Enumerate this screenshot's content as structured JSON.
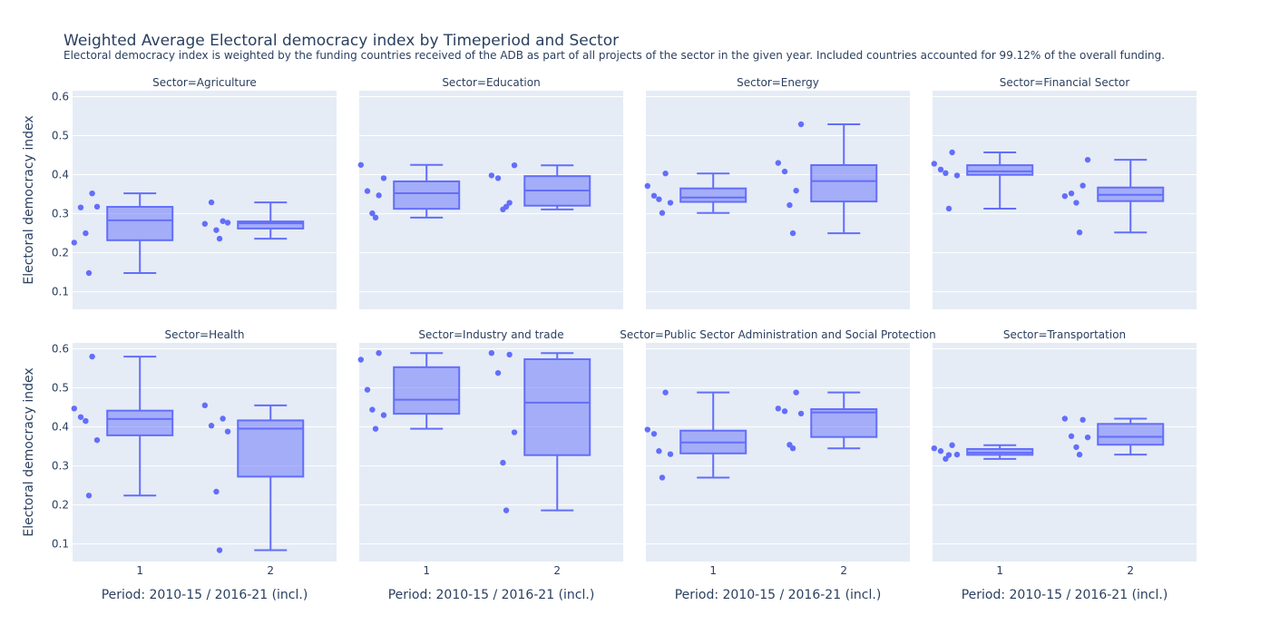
{
  "chart_data": {
    "type": "box",
    "title": "Weighted Average Electoral democracy index by Timeperiod and Sector",
    "subtitle": "Electoral democracy index is weighted by the funding countries received of the ADB as part of all projects of the sector in the given year. Included countries accounted for 99.12% of the overall funding.",
    "xlabel": "Period: 2010-15 / 2016-21 (incl.)",
    "ylabel": "Electoral democracy index",
    "x_categories": [
      "1",
      "2"
    ],
    "ylim": [
      0.055,
      0.615
    ],
    "yticks": [
      "0.1",
      "0.2",
      "0.3",
      "0.4",
      "0.5",
      "0.6"
    ],
    "grid": true,
    "colors": {
      "box_line": "#636efa",
      "box_fill": "rgba(99,110,250,0.5)",
      "plot_bg": "#e5ecf6",
      "grid": "#ffffff"
    },
    "facets": [
      {
        "label": "Sector=Agriculture",
        "boxes": [
          {
            "x": "1",
            "points": [
              0.316,
              0.318,
              0.226,
              0.352,
              0.25,
              0.148
            ]
          },
          {
            "x": "2",
            "points": [
              0.329,
              0.277,
              0.274,
              0.281,
              0.258,
              0.236
            ]
          }
        ]
      },
      {
        "label": "Sector=Education",
        "boxes": [
          {
            "x": "1",
            "points": [
              0.358,
              0.391,
              0.425,
              0.347,
              0.301,
              0.29
            ]
          },
          {
            "x": "2",
            "points": [
              0.391,
              0.424,
              0.398,
              0.328,
              0.311,
              0.318
            ]
          }
        ]
      },
      {
        "label": "Sector=Energy",
        "boxes": [
          {
            "x": "1",
            "points": [
              0.346,
              0.328,
              0.371,
              0.403,
              0.337,
              0.302
            ]
          },
          {
            "x": "2",
            "points": [
              0.408,
              0.529,
              0.43,
              0.359,
              0.322,
              0.25
            ]
          }
        ]
      },
      {
        "label": "Sector=Financial Sector",
        "boxes": [
          {
            "x": "1",
            "points": [
              0.413,
              0.398,
              0.428,
              0.457,
              0.404,
              0.313
            ]
          },
          {
            "x": "2",
            "points": [
              0.352,
              0.438,
              0.345,
              0.372,
              0.328,
              0.252
            ]
          }
        ]
      },
      {
        "label": "Sector=Health",
        "boxes": [
          {
            "x": "1",
            "points": [
              0.425,
              0.366,
              0.447,
              0.58,
              0.415,
              0.224
            ]
          },
          {
            "x": "2",
            "points": [
              0.403,
              0.388,
              0.455,
              0.421,
              0.234,
              0.084
            ]
          }
        ]
      },
      {
        "label": "Sector=Industry and trade",
        "boxes": [
          {
            "x": "1",
            "points": [
              0.495,
              0.43,
              0.572,
              0.589,
              0.444,
              0.395
            ]
          },
          {
            "x": "2",
            "points": [
              0.538,
              0.386,
              0.589,
              0.585,
              0.308,
              0.186
            ]
          }
        ]
      },
      {
        "label": "Sector=Public Sector Administration and Social Protection",
        "boxes": [
          {
            "x": "1",
            "points": [
              0.382,
              0.33,
              0.393,
              0.488,
              0.338,
              0.27
            ]
          },
          {
            "x": "2",
            "points": [
              0.44,
              0.434,
              0.447,
              0.488,
              0.354,
              0.345
            ]
          }
        ]
      },
      {
        "label": "Sector=Transportation",
        "boxes": [
          {
            "x": "1",
            "points": [
              0.338,
              0.329,
              0.345,
              0.353,
              0.318,
              0.328
            ]
          },
          {
            "x": "2",
            "points": [
              0.376,
              0.373,
              0.421,
              0.418,
              0.348,
              0.329
            ]
          }
        ]
      }
    ]
  }
}
